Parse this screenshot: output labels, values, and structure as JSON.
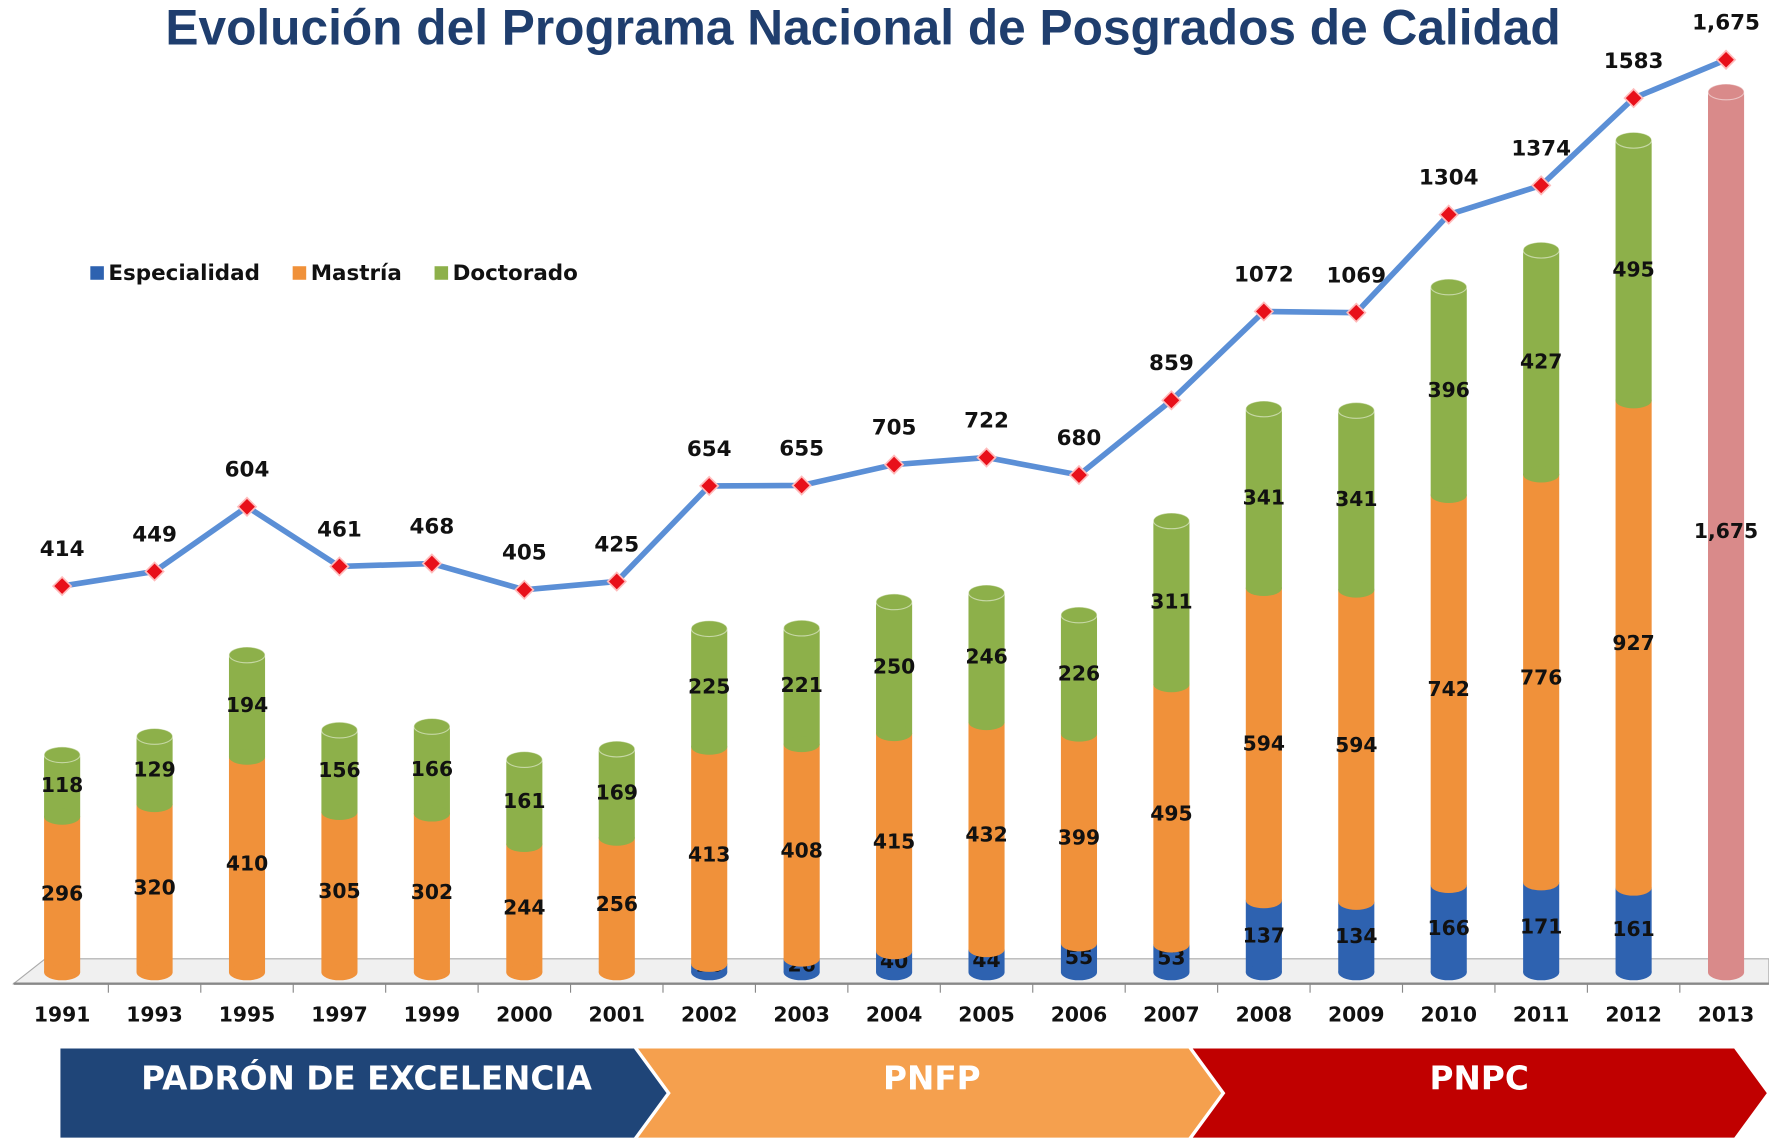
{
  "chart_data": {
    "type": "bar",
    "title": "Evolución del Programa Nacional de Posgrados de Calidad",
    "categories": [
      "1991",
      "1993",
      "1995",
      "1997",
      "1999",
      "2000",
      "2001",
      "2002",
      "2003",
      "2004",
      "2005",
      "2006",
      "2007",
      "2008",
      "2009",
      "2010",
      "2011",
      "2012",
      "2013"
    ],
    "stacked": true,
    "series": [
      {
        "name": "Especialidad",
        "color": "#2e62b0",
        "values": [
          null,
          null,
          null,
          null,
          null,
          null,
          null,
          16,
          26,
          40,
          44,
          55,
          53,
          137,
          134,
          166,
          171,
          161,
          null
        ]
      },
      {
        "name": "Mastría",
        "color": "#f0913a",
        "values": [
          296,
          320,
          410,
          305,
          302,
          244,
          256,
          413,
          408,
          415,
          432,
          399,
          495,
          594,
          594,
          742,
          776,
          927,
          null
        ]
      },
      {
        "name": "Doctorado",
        "color": "#8db04a",
        "values": [
          118,
          129,
          194,
          156,
          166,
          161,
          169,
          225,
          221,
          250,
          246,
          226,
          311,
          341,
          341,
          396,
          427,
          495,
          null
        ]
      },
      {
        "color": "#d98a8a",
        "values": [
          null,
          null,
          null,
          null,
          null,
          null,
          null,
          null,
          null,
          null,
          null,
          null,
          null,
          null,
          null,
          null,
          null,
          null,
          1675
        ],
        "value_labels": [
          null,
          null,
          null,
          null,
          null,
          null,
          null,
          null,
          null,
          null,
          null,
          null,
          null,
          null,
          null,
          null,
          null,
          null,
          "1,675"
        ]
      }
    ],
    "line": {
      "color": "#5b8fd6",
      "marker_color": "#e8101a",
      "values": [
        414,
        449,
        604,
        461,
        468,
        405,
        425,
        654,
        655,
        705,
        722,
        680,
        859,
        1072,
        1069,
        1304,
        1374,
        1583,
        1675
      ],
      "value_labels": [
        "414",
        "449",
        "604",
        "461",
        "468",
        "405",
        "425",
        "654",
        "655",
        "705",
        "722",
        "680",
        "859",
        "1072",
        "1069",
        "1304",
        "1374",
        "1583",
        "1,675"
      ]
    },
    "periods": [
      {
        "label": "PADRÓN DE EXCELENCIA",
        "from": "1991",
        "to": "2001",
        "color": "#1f4578"
      },
      {
        "label": "PNFP",
        "from": "2002",
        "to": "2007",
        "color": "#f5a04e"
      },
      {
        "label": "PNPC",
        "from": "2008",
        "to": "2013",
        "color": "#c00000"
      }
    ],
    "legend": "top-left"
  }
}
